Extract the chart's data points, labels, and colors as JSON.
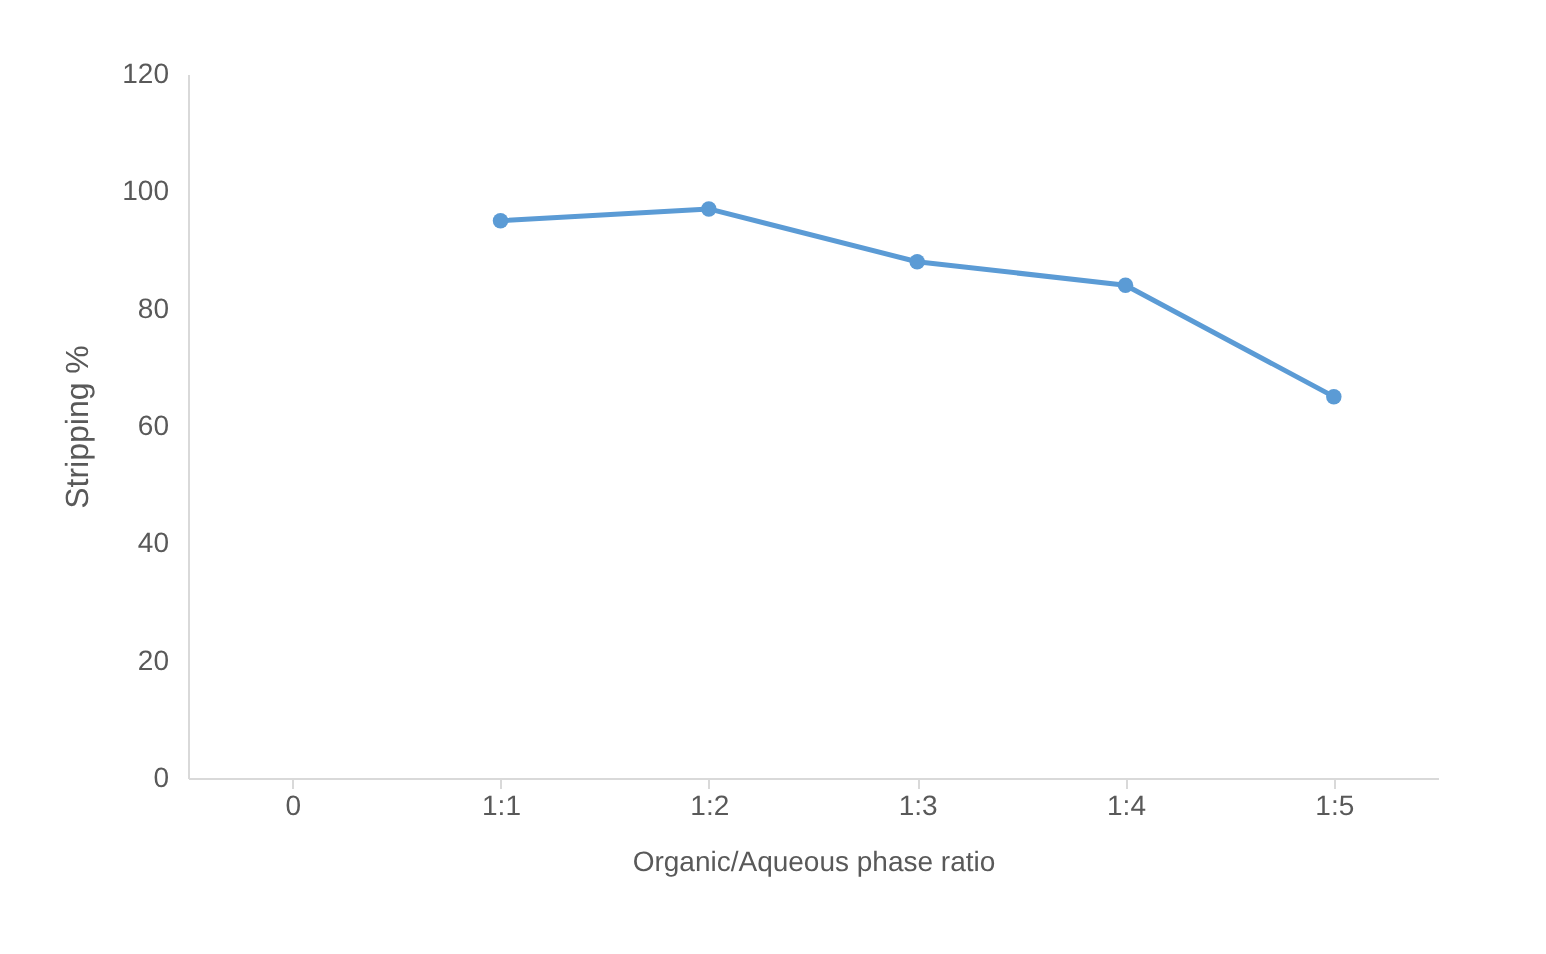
{
  "chart_data": {
    "type": "line",
    "xlabel": "Organic/Aqueous phase ratio",
    "ylabel": "Stripping %",
    "categories": [
      "0",
      "1:1",
      "1:2",
      "1:3",
      "1:4",
      "1:5"
    ],
    "series": [
      {
        "color": "#5b9bd5",
        "values": [
          null,
          95,
          97,
          88,
          84,
          65
        ]
      }
    ],
    "ylim": [
      0,
      120
    ],
    "yticks": [
      0,
      20,
      40,
      60,
      80,
      100,
      120
    ],
    "grid": false,
    "legend": false,
    "marker": "circle",
    "line_style": "solid"
  }
}
